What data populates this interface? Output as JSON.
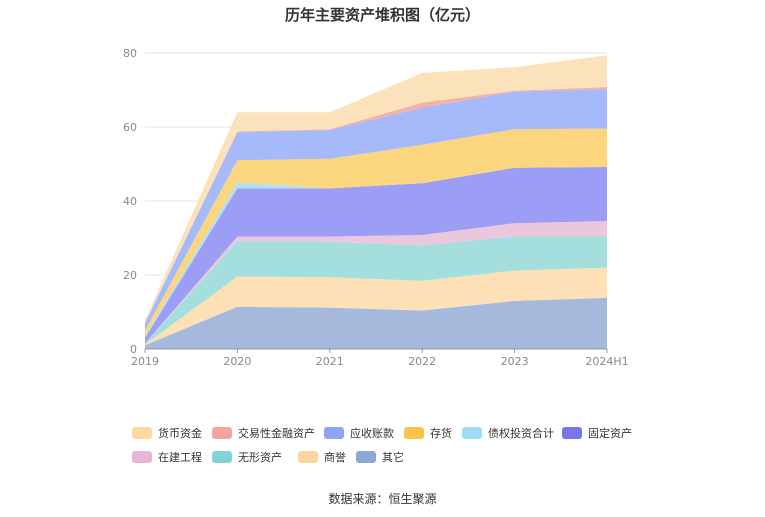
{
  "chart_data": {
    "type": "area",
    "stacked": true,
    "title": "历年主要资产堆积图（亿元）",
    "categories": [
      "2019",
      "2020",
      "2021",
      "2022",
      "2023",
      "2024H1"
    ],
    "ylim": [
      0,
      80
    ],
    "yticks": [
      "0",
      "20",
      "40",
      "60",
      "80"
    ],
    "grid": true,
    "legend_position": "bottom",
    "series": [
      {
        "name": "其它",
        "color": "#a4b9db",
        "values": [
          1.0,
          11.4,
          11.2,
          10.4,
          13.0,
          13.8
        ]
      },
      {
        "name": "商誉",
        "color": "#fde0b6",
        "values": [
          0.2,
          8.2,
          8.2,
          8.0,
          8.2,
          8.2
        ]
      },
      {
        "name": "无形资产",
        "color": "#a5dfdd",
        "values": [
          0.2,
          9.6,
          9.6,
          9.6,
          9.2,
          8.4
        ]
      },
      {
        "name": "在建工程",
        "color": "#eac7dd",
        "values": [
          0.1,
          1.2,
          1.4,
          2.8,
          3.6,
          4.2
        ]
      },
      {
        "name": "固定资产",
        "color": "#9b9ef4",
        "values": [
          1.5,
          13.0,
          13.0,
          14.0,
          15.0,
          14.6
        ]
      },
      {
        "name": "债权投资合计",
        "color": "#b1e0f4",
        "values": [
          0.5,
          1.6,
          0.0,
          0.0,
          0.0,
          0.0
        ]
      },
      {
        "name": "存货",
        "color": "#fcd57f",
        "values": [
          1.5,
          6.0,
          8.0,
          10.4,
          10.4,
          10.4
        ]
      },
      {
        "name": "应收账款",
        "color": "#a6b9fb",
        "values": [
          2.0,
          7.6,
          7.8,
          10.0,
          10.2,
          10.6
        ]
      },
      {
        "name": "交易性金融资产",
        "color": "#f3b2a6",
        "values": [
          0.0,
          0.2,
          0.2,
          1.4,
          0.2,
          0.6
        ]
      },
      {
        "name": "货币资金",
        "color": "#fce2ba",
        "values": [
          0.8,
          5.2,
          4.6,
          8.0,
          6.4,
          8.6
        ]
      }
    ]
  },
  "legend": [
    {
      "label": "货币资金",
      "color": "#fdd9a0"
    },
    {
      "label": "交易性金融资产",
      "color": "#f2a59c"
    },
    {
      "label": "应收账款",
      "color": "#8ea4f4"
    },
    {
      "label": "存货",
      "color": "#fbc34a"
    },
    {
      "label": "债权投资合计",
      "color": "#9fdcf4"
    },
    {
      "label": "固定资产",
      "color": "#7777ec"
    },
    {
      "label": "在建工程",
      "color": "#e5b6d9"
    },
    {
      "label": "无形资产",
      "color": "#7fd4d6"
    },
    {
      "label": "商誉",
      "color": "#fbd79f"
    },
    {
      "label": "其它",
      "color": "#8ea8d6"
    }
  ],
  "source": "数据来源：恒生聚源"
}
